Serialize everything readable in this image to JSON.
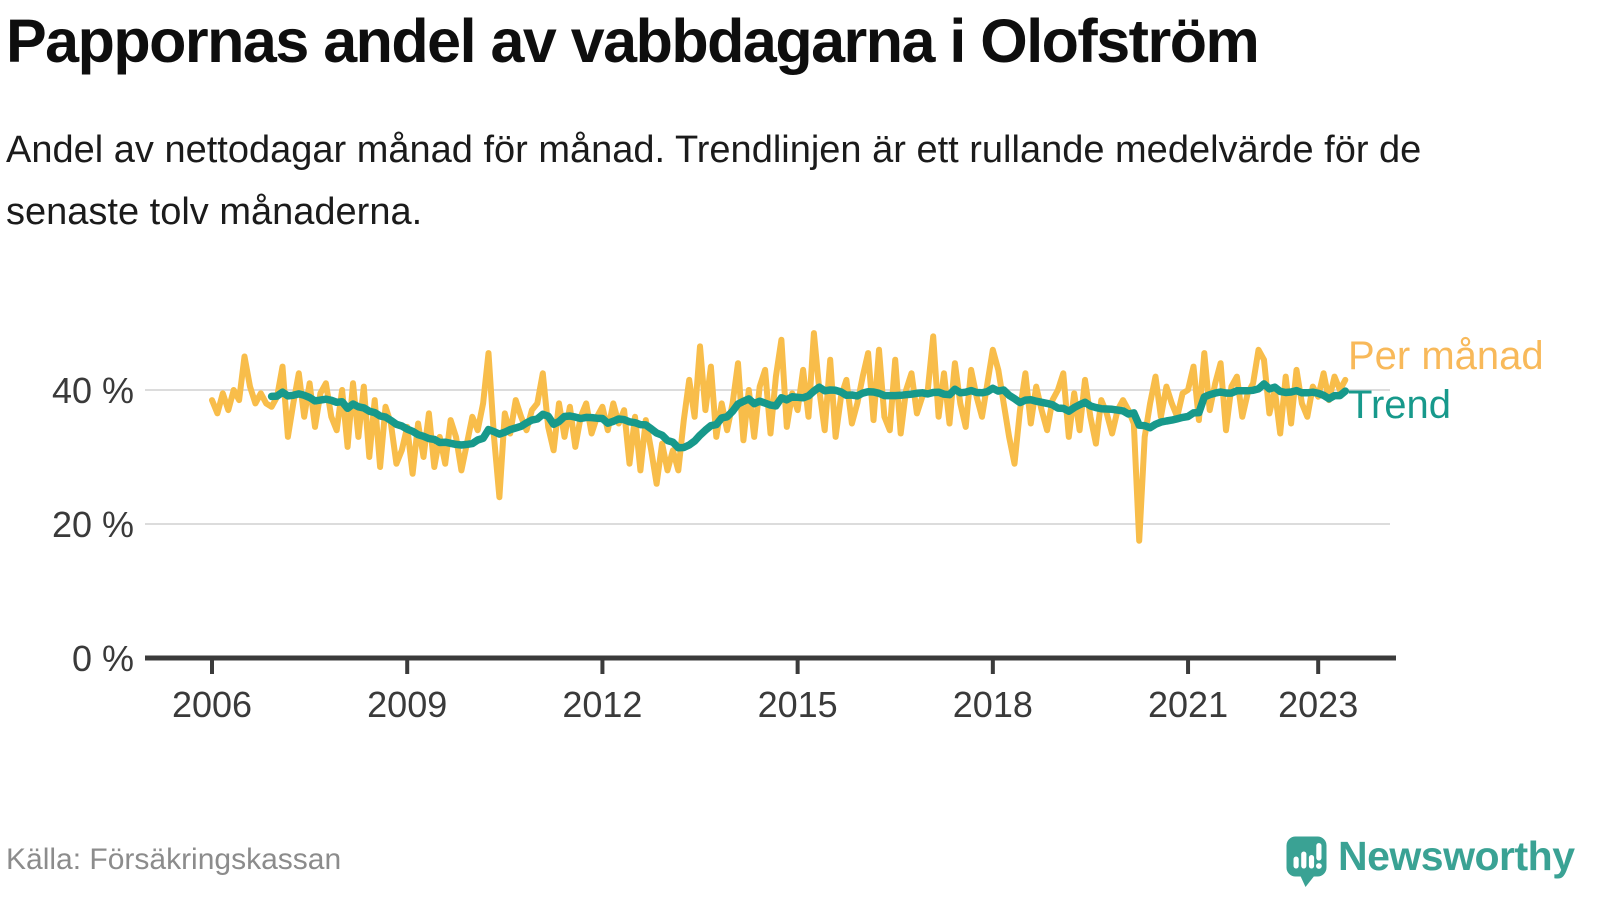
{
  "title": "Pappornas andel av vabbdagarna i Olofström",
  "subtitle": "Andel av nettodagar månad för månad. Trendlinjen är ett rullande medelvärde för de senaste tolv månaderna.",
  "source": "Källa: Försäkringskassan",
  "brand": {
    "name": "Newsworthy"
  },
  "legend": {
    "monthly": "Per månad",
    "trend": "Trend"
  },
  "colors": {
    "monthly_line": "#f8bd4a",
    "monthly_label": "#f8b95a",
    "trend_line": "#17998b",
    "trend_label": "#17998b",
    "grid": "#dcdcdc",
    "axis": "#3b3b3b",
    "tick_text": "#3a3a3a",
    "brand": "#3aa294"
  },
  "chart_data": {
    "type": "line",
    "title": "Pappornas andel av vabbdagarna i Olofström",
    "unit": "%",
    "x_start": {
      "year": 2006,
      "month": 1
    },
    "x_interval": "monthly",
    "x_tick_years": [
      2006,
      2009,
      2012,
      2015,
      2018,
      2021,
      2023
    ],
    "y_ticks": [
      {
        "value": 0,
        "label": "0 %"
      },
      {
        "value": 20,
        "label": "20 %"
      },
      {
        "value": 40,
        "label": "40 %"
      }
    ],
    "ylim": [
      0,
      52
    ],
    "grid": "horizontal",
    "legend_position": "right-of-line-end",
    "series": [
      {
        "name": "Per månad",
        "role": "monthly",
        "values": [
          38.5,
          36.5,
          39.5,
          37,
          40,
          38.5,
          45,
          40.5,
          38,
          39.5,
          38,
          37.5,
          39,
          43.5,
          33,
          38,
          42.5,
          36,
          41,
          34.5,
          39.5,
          41,
          36,
          34,
          40,
          31.5,
          41,
          33,
          40.5,
          30,
          38.5,
          28.5,
          37.5,
          35,
          29,
          31,
          34.5,
          27.5,
          35,
          30,
          36.5,
          28.5,
          33,
          29,
          35.5,
          33,
          28,
          32,
          36,
          34,
          38,
          45.5,
          33,
          24,
          36.5,
          33.5,
          38.5,
          36,
          34,
          37,
          38,
          42.5,
          34.5,
          31,
          38,
          33,
          37.5,
          31.5,
          36,
          38,
          33.5,
          36,
          37.5,
          34,
          38,
          35,
          37,
          29,
          36,
          28,
          35.5,
          31,
          26,
          32,
          28,
          31,
          28,
          35.5,
          41.5,
          36,
          46.5,
          37,
          43.5,
          33,
          38,
          34,
          38,
          44,
          32.5,
          40,
          33,
          40.5,
          43,
          33.5,
          42,
          47.5,
          34.5,
          39.5,
          37,
          43,
          36,
          48.5,
          40,
          34,
          44.5,
          33,
          39,
          41.5,
          35,
          38,
          42,
          45.5,
          35.5,
          46,
          36,
          34,
          44.5,
          33.5,
          40,
          42.5,
          36.5,
          39,
          40,
          48,
          36,
          42.5,
          35,
          44,
          38,
          34.5,
          43,
          39,
          36,
          41,
          46,
          43,
          38,
          33,
          29,
          37,
          42.5,
          35,
          40.5,
          37,
          34,
          38.5,
          40,
          42.5,
          33,
          39.5,
          34,
          41.5,
          36,
          32,
          38.5,
          36.5,
          33.5,
          37,
          38.5,
          37,
          35,
          17.5,
          33,
          38,
          42,
          36,
          40.5,
          38,
          36,
          39.5,
          40,
          43.5,
          35.5,
          45.5,
          37,
          41,
          44,
          34,
          40.5,
          42,
          36,
          39.5,
          41,
          46,
          44.5,
          36.5,
          40,
          33.5,
          42,
          35,
          43,
          38,
          36,
          40.5,
          39,
          42.5,
          38.5,
          42,
          40,
          41.5
        ]
      },
      {
        "name": "Trend",
        "role": "trend",
        "derivation": "rolling mean of the last 12 months of the monthly series"
      }
    ]
  }
}
